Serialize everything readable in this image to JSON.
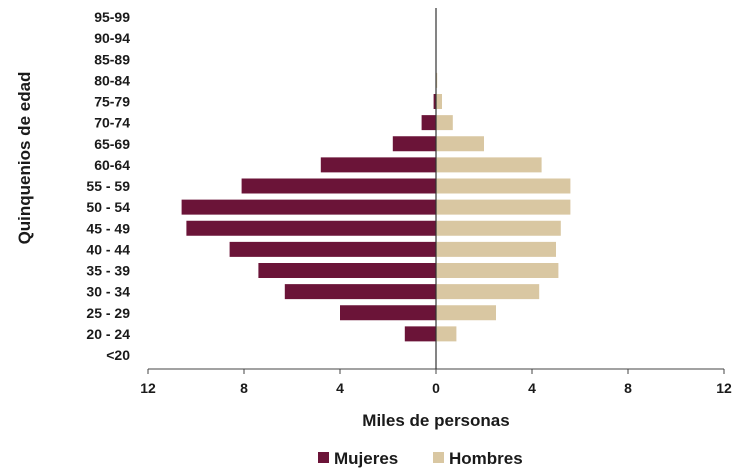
{
  "chart_data": {
    "type": "bar",
    "orientation": "horizontal",
    "layout": "population-pyramid",
    "categories": [
      "95-99",
      "90-94",
      "85-89",
      "80-84",
      "75-79",
      "70-74",
      "65-69",
      "60-64",
      "55 - 59",
      "50 - 54",
      "45 - 49",
      "40 - 44",
      "35 - 39",
      "30 - 34",
      "25 - 29",
      "20 - 24",
      "<20"
    ],
    "series": [
      {
        "name": "Mujeres",
        "side": "left",
        "color": "#6b1438",
        "values": [
          0,
          0,
          0,
          0,
          0.1,
          0.6,
          1.8,
          4.8,
          8.1,
          10.6,
          10.4,
          8.6,
          7.4,
          6.3,
          4.0,
          1.3,
          0
        ]
      },
      {
        "name": "Hombres",
        "side": "right",
        "color": "#d9c7a2",
        "values": [
          0,
          0,
          0,
          0.05,
          0.25,
          0.7,
          2.0,
          4.4,
          5.6,
          5.6,
          5.2,
          5.0,
          5.1,
          4.3,
          2.5,
          0.85,
          0
        ]
      }
    ],
    "xticks": [
      "12",
      "8",
      "4",
      "0",
      "4",
      "8",
      "12"
    ],
    "xlim": [
      -12,
      12
    ],
    "xlabel": "Miles de personas",
    "ylabel": "Quinquenios de edad",
    "legend_position": "bottom",
    "grid": false
  }
}
